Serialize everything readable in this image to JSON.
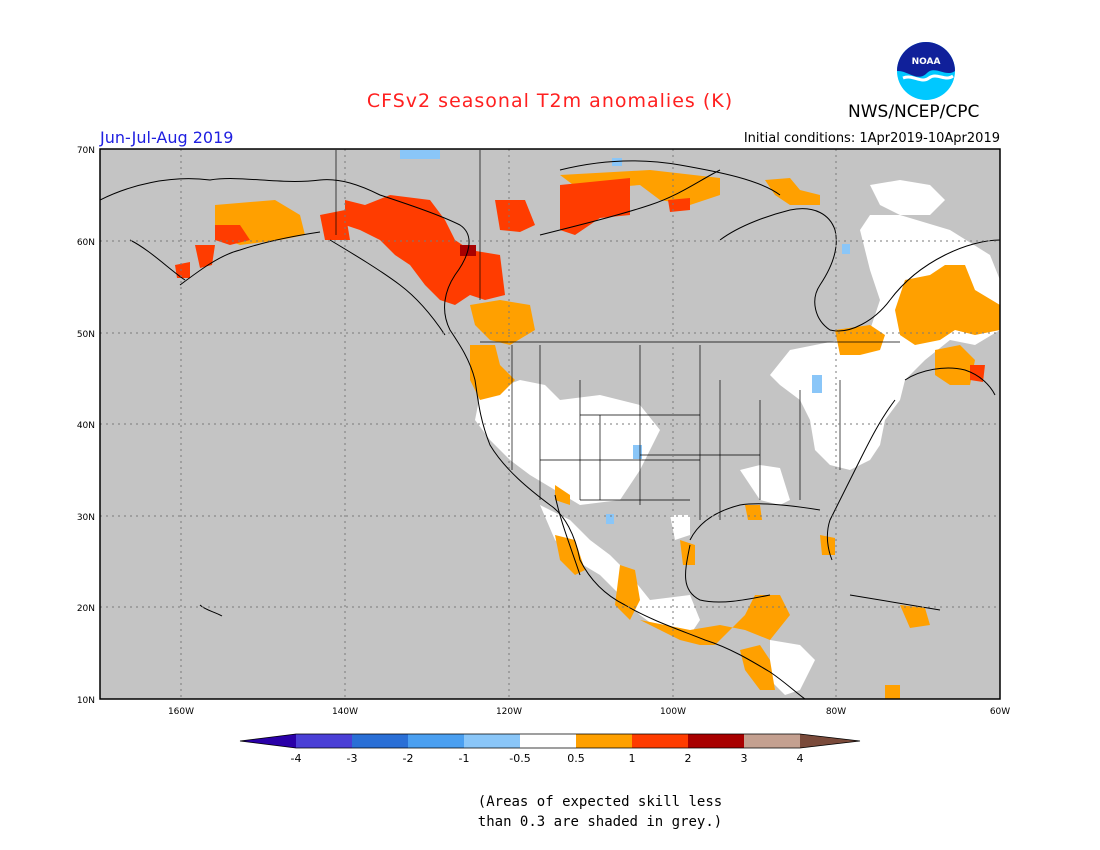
{
  "title": "CFSv2 seasonal T2m anomalies (K)",
  "agency": "NWS/NCEP/CPC",
  "logo_text": "NOAA",
  "season": "Jun-Jul-Aug 2019",
  "initial_conditions": "Initial conditions: 1Apr2019-10Apr2019",
  "lat_labels": [
    "70N",
    "60N",
    "50N",
    "40N",
    "30N",
    "20N",
    "10N"
  ],
  "lon_labels": [
    "160W",
    "140W",
    "120W",
    "100W",
    "80W",
    "60W"
  ],
  "colorbar": {
    "labels": [
      "-4",
      "-3",
      "-2",
      "-1",
      "-0.5",
      "0.5",
      "1",
      "2",
      "3",
      "4"
    ],
    "colors": [
      "#2a00a8",
      "#4a3fd6",
      "#2a6fd6",
      "#4a9ff0",
      "#8ac6f8",
      "#ffffff",
      "#ffa000",
      "#ff3c00",
      "#a80000",
      "#c4a090",
      "#7a4a3a"
    ]
  },
  "note_line1": "(Areas of expected skill less",
  "note_line2": "than 0.3 are shaded in grey.)",
  "colors": {
    "land_sea_bg": "#c4c4c4",
    "coast": "#000000",
    "grid": "#7a7a7a",
    "title": "#ff2020",
    "season": "#2020e0"
  }
}
